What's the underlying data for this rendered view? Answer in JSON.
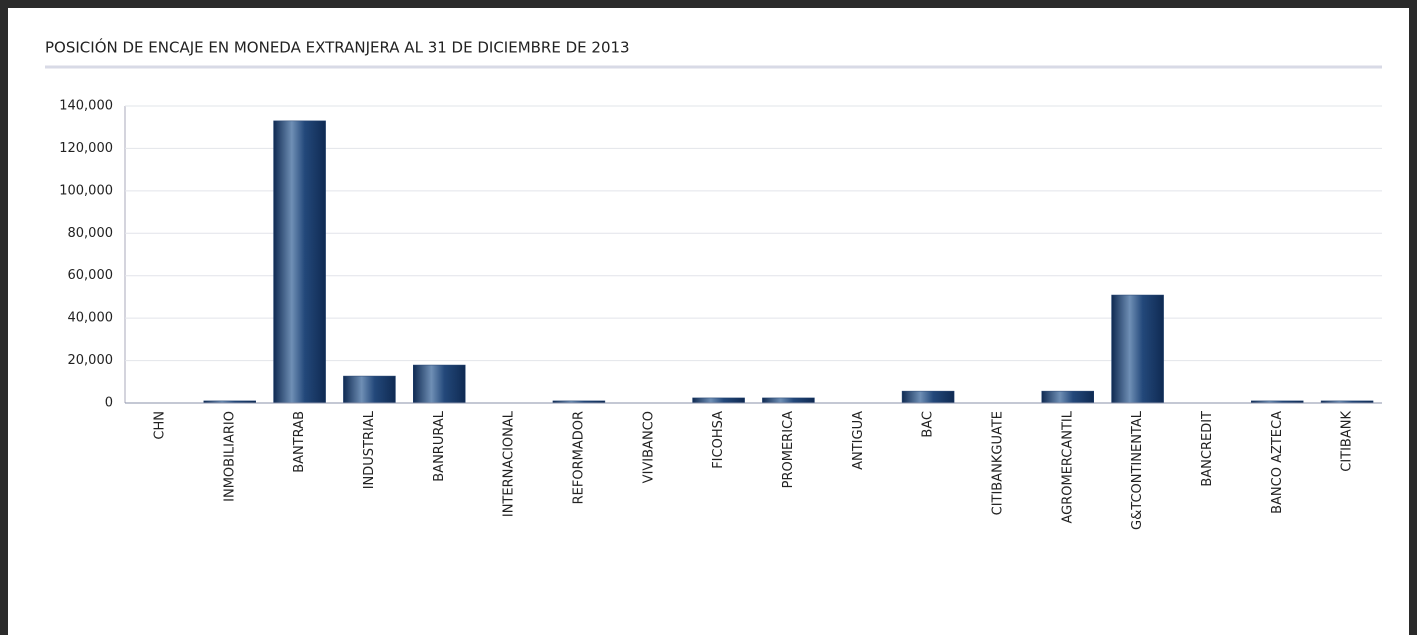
{
  "chart_data": {
    "type": "bar",
    "title": "POSICIÓN DE ENCAJE EN MONEDA EXTRANJERA AL 31 DE DICIEMBRE DE 2013",
    "categories": [
      "CHN",
      "INMOBILIARIO",
      "BANTRAB",
      "INDUSTRIAL",
      "BANRURAL",
      "INTERNACIONAL",
      "REFORMADOR",
      "VIVIBANCO",
      "FICOHSA",
      "PROMERICA",
      "ANTIGUA",
      "BAC",
      "CITIBANKGUATE",
      "AGROMERCANTIL",
      "G&TCONTINENTAL",
      "BANCREDIT",
      "BANCO AZTECA",
      "CITIBANK"
    ],
    "values": [
      0,
      1000,
      133000,
      12700,
      17900,
      0,
      1000,
      0,
      2400,
      2400,
      0,
      5600,
      0,
      5600,
      50900,
      0,
      1000,
      1000
    ],
    "color": "#1f3f6e",
    "ylim": [
      0,
      140000
    ],
    "yticks": [
      0,
      {
        "value": 20000,
        "label": "20,000"
      },
      {
        "value": 40000,
        "label": "40,000"
      },
      {
        "value": 60000,
        "label": "60,000"
      },
      {
        "value": 80000,
        "label": "80,000"
      },
      {
        "value": 100000,
        "label": "100,000"
      },
      {
        "value": 120000,
        "label": "120,000"
      },
      {
        "value": 140000,
        "label": "140,000"
      }
    ],
    "grid": true
  }
}
